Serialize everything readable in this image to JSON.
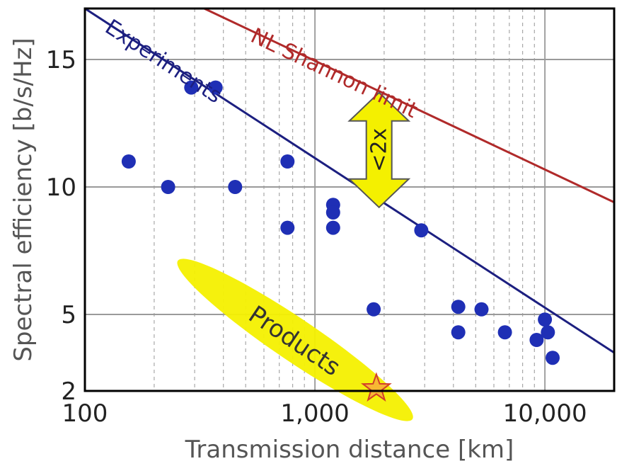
{
  "chart_data": {
    "type": "scatter",
    "xlabel": "Transmission distance [km]",
    "ylabel": "Spectral efficiency [b/s/Hz]",
    "x_scale": "log",
    "xlim": [
      100,
      20000
    ],
    "ylim": [
      2,
      17
    ],
    "x_ticks": [
      100,
      1000,
      10000
    ],
    "x_tick_labels": [
      "100",
      "1,000",
      "10,000"
    ],
    "y_ticks": [
      2,
      5,
      10,
      15
    ],
    "y_tick_labels": [
      "2",
      "5",
      "10",
      "15"
    ],
    "grid": true,
    "series": [
      {
        "name": "Experiments",
        "type": "scatter",
        "color": "#1f2fb5",
        "points": [
          {
            "x": 155,
            "y": 11
          },
          {
            "x": 230,
            "y": 10
          },
          {
            "x": 290,
            "y": 13.9
          },
          {
            "x": 370,
            "y": 13.9
          },
          {
            "x": 450,
            "y": 10
          },
          {
            "x": 760,
            "y": 11
          },
          {
            "x": 760,
            "y": 8.4
          },
          {
            "x": 1200,
            "y": 9.3
          },
          {
            "x": 1200,
            "y": 9.0
          },
          {
            "x": 1200,
            "y": 8.4
          },
          {
            "x": 1800,
            "y": 5.2
          },
          {
            "x": 2900,
            "y": 8.3
          },
          {
            "x": 4200,
            "y": 5.3
          },
          {
            "x": 4200,
            "y": 4.3
          },
          {
            "x": 5300,
            "y": 5.2
          },
          {
            "x": 6700,
            "y": 4.3
          },
          {
            "x": 9200,
            "y": 4.0
          },
          {
            "x": 10000,
            "y": 4.8
          },
          {
            "x": 10300,
            "y": 4.3
          },
          {
            "x": 10800,
            "y": 3.3
          }
        ]
      }
    ],
    "trend_lines": [
      {
        "label": "Experiments",
        "color": "#1c1f80",
        "points": [
          {
            "x": 100,
            "y": 17
          },
          {
            "x": 20000,
            "y": 3.5
          }
        ]
      },
      {
        "label": "NL Shannon limit",
        "color": "#b02a2a",
        "points": [
          {
            "x": 330,
            "y": 17
          },
          {
            "x": 20000,
            "y": 9.4
          }
        ]
      }
    ],
    "annotations": [
      {
        "text": "<2x",
        "type": "double-arrow",
        "x": 1900,
        "y_from": 9.2,
        "y_to": 13.7,
        "color": "#f4f000"
      },
      {
        "text": "Products",
        "type": "ellipse-region",
        "x": 820,
        "y": 4.0,
        "color": "#f4f000"
      },
      {
        "text": "",
        "type": "star",
        "x": 1850,
        "y": 2.1,
        "color": "#e08020"
      }
    ]
  }
}
